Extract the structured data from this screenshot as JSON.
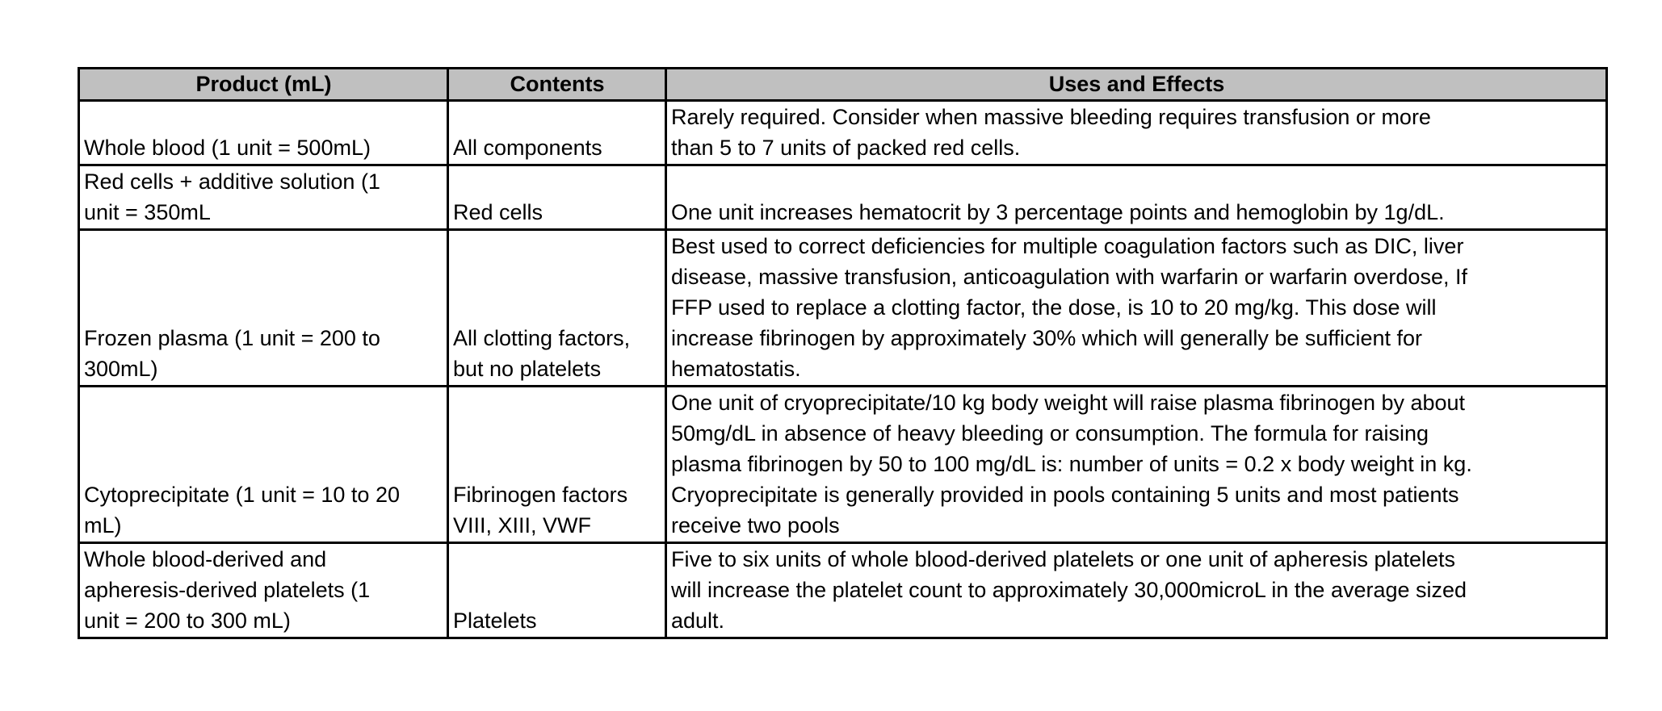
{
  "table": {
    "headers": [
      "Product (mL)",
      "Contents",
      "Uses and Effects"
    ],
    "header_bg": "#c0c0c0",
    "rows": [
      {
        "product": [
          "Whole blood (1 unit = 500mL)"
        ],
        "contents": [
          "All components"
        ],
        "uses": [
          "Rarely required.  Consider when massive bleeding requires transfusion or more",
          "than 5 to 7 units of packed red cells."
        ]
      },
      {
        "product": [
          "Red cells + additive solution (1",
          "unit = 350mL"
        ],
        "contents": [
          "Red cells"
        ],
        "uses": [
          "One unit increases hematocrit by 3 percentage points and hemoglobin by 1g/dL."
        ]
      },
      {
        "product": [
          "Frozen plasma (1 unit = 200 to",
          "300mL)"
        ],
        "contents": [
          "All clotting factors,",
          "but no platelets"
        ],
        "uses": [
          "Best used to correct deficiencies for multiple coagulation factors such as DIC, liver",
          "disease, massive transfusion, anticoagulation with warfarin or warfarin overdose, If",
          "FFP used to replace a clotting factor, the dose, is 10 to 20 mg/kg.  This dose will",
          "increase fibrinogen by approximately 30% which will generally be sufficient for",
          "hematostatis."
        ]
      },
      {
        "product": [
          "Cytoprecipitate (1 unit = 10 to 20",
          "mL)"
        ],
        "contents": [
          "Fibrinogen factors",
          "VIII, XIII, VWF"
        ],
        "uses": [
          "One unit of cryoprecipitate/10 kg body weight will raise plasma fibrinogen by about",
          "50mg/dL in absence of heavy bleeding or consumption.  The formula for raising",
          "plasma fibrinogen by 50 to 100 mg/dL is: number of units = 0.2 x body weight in kg.",
          "Cryoprecipitate is generally provided in pools containing 5 units and most patients",
          "receive two pools"
        ]
      },
      {
        "product": [
          "Whole blood-derived and",
          "apheresis-derived platelets (1",
          "unit = 200 to 300 mL)"
        ],
        "contents": [
          "Platelets"
        ],
        "uses": [
          "Five to six units of whole blood-derived platelets or one unit of apheresis platelets",
          "will increase the platelet count to approximately 30,000microL in the average sized",
          "adult."
        ]
      }
    ]
  }
}
